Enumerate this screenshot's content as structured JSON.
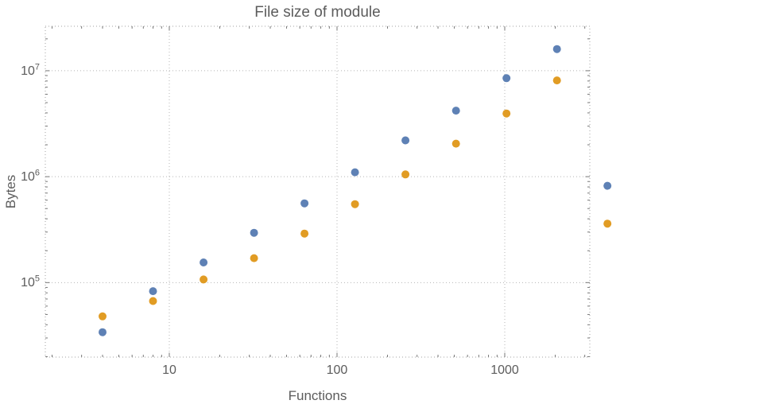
{
  "chart_data": {
    "type": "scatter",
    "title": "File size of module",
    "xlabel": "Functions",
    "ylabel": "Bytes",
    "x_scale": "log",
    "y_scale": "log",
    "x": [
      4,
      8,
      16,
      32,
      64,
      128,
      256,
      512,
      1024,
      2048,
      4096
    ],
    "series": [
      {
        "name": "blue",
        "color": "#5e81b5",
        "values": [
          34000,
          83000,
          155000,
          295000,
          560000,
          1100000,
          2200000,
          4200000,
          8500000,
          16000000,
          820000
        ]
      },
      {
        "name": "orange",
        "color": "#e19c24",
        "values": [
          48000,
          67000,
          107000,
          170000,
          290000,
          550000,
          1050000,
          2050000,
          3950000,
          8100000,
          360000
        ]
      }
    ],
    "x_ticks": [
      10,
      100,
      1000
    ],
    "x_tick_labels": [
      "10",
      "100",
      "1000"
    ],
    "y_ticks": [
      100000,
      1000000,
      10000000
    ],
    "y_tick_labels": [
      "10^5",
      "10^6",
      "10^7"
    ],
    "xlim": [
      1.823,
      3214
    ],
    "ylim": [
      19800,
      26300000
    ],
    "grid": "dotted",
    "legend": "none",
    "marker_radius": 5,
    "text_color": "#5c5c5c",
    "grid_color": "#b5b5b5",
    "frame_color": "#a0a0a0"
  }
}
